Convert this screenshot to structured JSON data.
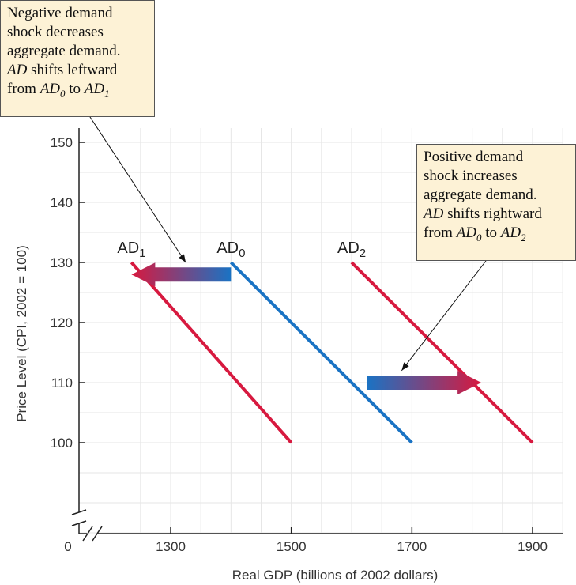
{
  "chart_data": {
    "type": "line",
    "xlabel": "Real GDP (billions of 2002 dollars)",
    "ylabel": "Price Level (CPI, 2002 = 100)",
    "x_origin_label": "0",
    "x_ticks": [
      1300,
      1500,
      1700,
      1900
    ],
    "y_ticks": [
      100,
      110,
      120,
      130,
      140,
      150
    ],
    "xlim": [
      1200,
      1950
    ],
    "ylim": [
      87,
      153
    ],
    "grid": true,
    "axis_breaks": [
      "x",
      "y"
    ],
    "series": [
      {
        "name": "AD",
        "sub": "1",
        "color": "#d7193f",
        "points": [
          [
            1235,
            130
          ],
          [
            1500,
            100
          ]
        ]
      },
      {
        "name": "AD",
        "sub": "0",
        "color": "#1a73c4",
        "points": [
          [
            1400,
            130
          ],
          [
            1700,
            100
          ]
        ]
      },
      {
        "name": "AD",
        "sub": "2",
        "color": "#d7193f",
        "points": [
          [
            1600,
            130
          ],
          [
            1900,
            100
          ]
        ]
      }
    ],
    "shift_arrows": [
      {
        "from": [
          1400,
          128
        ],
        "to": [
          1235,
          128
        ],
        "color_start": "#1a73c4",
        "color_end": "#d7193f"
      },
      {
        "from": [
          1625,
          110
        ],
        "to": [
          1815,
          110
        ],
        "color_start": "#1a73c4",
        "color_end": "#d7193f"
      }
    ],
    "annotations": [
      {
        "line1": "Negative demand",
        "line2": "shock decreases",
        "line3": "aggregate demand.",
        "line4_a": "AD",
        "line4_b": " shifts leftward",
        "line5_a": "from ",
        "line5_b": "AD",
        "line5_c": "0",
        "line5_d": " to ",
        "line5_e": "AD",
        "line5_f": "1",
        "pointer_to": [
          1325,
          130
        ]
      },
      {
        "line1": "Positive demand",
        "line2": "shock increases",
        "line3": "aggregate demand.",
        "line4_a": "AD",
        "line4_b": " shifts rightward",
        "line5_a": "from ",
        "line5_b": "AD",
        "line5_c": "0",
        "line5_d": " to ",
        "line5_e": "AD",
        "line5_f": "2",
        "pointer_to": [
          1683,
          112
        ]
      }
    ]
  }
}
